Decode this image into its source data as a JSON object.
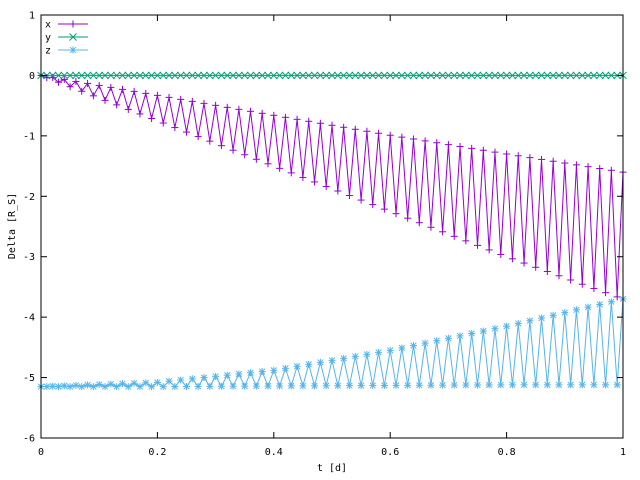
{
  "chart_data": {
    "type": "line",
    "title": "",
    "xlabel": "t [d]",
    "ylabel": "Delta [R_S]",
    "xlim": [
      0,
      1
    ],
    "ylim": [
      -6,
      1
    ],
    "x_ticks": [
      "0",
      "0.2",
      "0.4",
      "0.6",
      "0.8",
      "1"
    ],
    "y_ticks": [
      "1",
      "0",
      "-1",
      "-2",
      "-3",
      "-4",
      "-5",
      "-6"
    ],
    "grid": false,
    "legend_position": "top-left",
    "n_samples": 101,
    "n_cycles": 100,
    "series": [
      {
        "name": "x",
        "color": "#9400d3",
        "marker": "plus",
        "description": "oscillates each step between an upper envelope and a lower envelope",
        "upper_envelope": {
          "x": [
            0,
            0.2,
            0.4,
            0.6,
            0.8,
            1.0
          ],
          "y": [
            0,
            -0.33,
            -0.66,
            -0.99,
            -1.3,
            -1.6
          ]
        },
        "lower_envelope": {
          "x": [
            0,
            0.2,
            0.4,
            0.6,
            0.8,
            1.0
          ],
          "y": [
            0,
            -0.75,
            -1.5,
            -2.25,
            -3.0,
            -3.7
          ]
        }
      },
      {
        "name": "y",
        "color": "#009e73",
        "marker": "cross",
        "description": "constant at zero",
        "upper_envelope": {
          "x": [
            0,
            1.0
          ],
          "y": [
            0,
            0
          ]
        },
        "lower_envelope": {
          "x": [
            0,
            1.0
          ],
          "y": [
            0,
            0
          ]
        }
      },
      {
        "name": "z",
        "color": "#56b4e9",
        "marker": "star",
        "description": "oscillates each step between a rising upper envelope and a nearly flat lower envelope",
        "upper_envelope": {
          "x": [
            0,
            0.2,
            0.4,
            0.6,
            0.8,
            1.0
          ],
          "y": [
            -5.15,
            -5.08,
            -4.88,
            -4.55,
            -4.15,
            -3.7
          ]
        },
        "lower_envelope": {
          "x": [
            0,
            0.2,
            0.4,
            0.6,
            0.8,
            1.0
          ],
          "y": [
            -5.15,
            -5.15,
            -5.14,
            -5.13,
            -5.12,
            -5.12
          ]
        }
      }
    ]
  }
}
